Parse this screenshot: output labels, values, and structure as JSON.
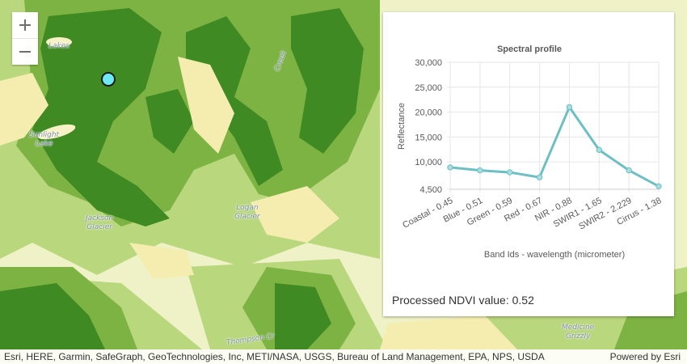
{
  "map": {
    "zoom_in_label": "+",
    "zoom_out_label": "—",
    "labels": [
      {
        "id": "lake-upper",
        "text": "Lakes"
      },
      {
        "id": "creek",
        "text": "Creek"
      },
      {
        "id": "sunlight-lake",
        "text": "Sunlight\nLake"
      },
      {
        "id": "jackson-glacier",
        "text": "Jackson\nGlacier"
      },
      {
        "id": "logan-glacier",
        "text": "Logan\nGlacier"
      },
      {
        "id": "thompson-creek",
        "text": "Thompson Cr"
      },
      {
        "id": "medicine-grizzly",
        "text": "Medicine\nGrizzly"
      }
    ],
    "colors": {
      "dark_green": "#3f8a22",
      "mid_green": "#7db342",
      "light_green": "#b9d77d",
      "pale": "#eef2c6",
      "yellow": "#f5edb0",
      "pin": "#6fe9f4"
    }
  },
  "panel": {
    "ndvi_label": "Processed NDVI value: 0.52"
  },
  "chart_data": {
    "type": "line",
    "title": "Spectral profile",
    "xlabel": "Band Ids - wavelength (micrometer)",
    "ylabel": "Reflectance",
    "categories": [
      "Coastal - 0.45",
      "Blue - 0.51",
      "Green - 0.59",
      "Red - 0.67",
      "NIR - 0.88",
      "SWIR1 - 1.65",
      "SWIR2 - 2.229",
      "Cirrus - 1.38"
    ],
    "values": [
      8900,
      8300,
      7900,
      6900,
      21000,
      12400,
      8300,
      5100
    ],
    "ylim": [
      4500,
      30000
    ],
    "yticks": [
      4500,
      10000,
      15000,
      20000,
      25000,
      30000
    ],
    "ytick_labels": [
      "4,500",
      "10,000",
      "15,000",
      "20,000",
      "25,000",
      "30,000"
    ],
    "line_color": "#6cbfc4",
    "grid": true
  },
  "attribution": {
    "sources": "Esri, HERE, Garmin, SafeGraph, GeoTechnologies, Inc, METI/NASA, USGS, Bureau of Land Management, EPA, NPS, USDA",
    "powered_by": "Powered by Esri"
  }
}
